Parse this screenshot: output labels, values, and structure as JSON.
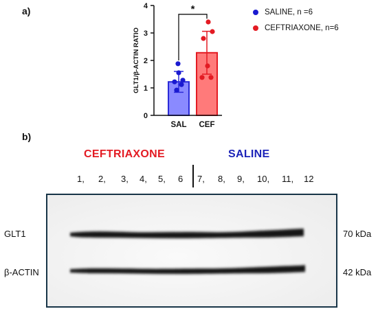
{
  "panel_a": {
    "letter": "a)",
    "chart_data": {
      "type": "bar",
      "categories": [
        "SAL",
        "CEF"
      ],
      "values": [
        1.22,
        2.28
      ],
      "error": [
        0.38,
        0.78
      ],
      "points": [
        [
          0.92,
          1.12,
          1.22,
          1.28,
          1.55,
          1.88
        ],
        [
          1.38,
          1.38,
          1.8,
          2.8,
          3.05,
          3.4
        ]
      ],
      "ylabel": "GLT1/β-ACTIN RATIO",
      "xlabel": "",
      "ylim": [
        0,
        4
      ],
      "yticks": [
        "0",
        "1",
        "2",
        "3",
        "4"
      ],
      "significance": "*",
      "colors": {
        "sal_fill": "#8a8aff",
        "sal_edge": "#2a2ad8",
        "cef_fill": "#ff7a7a",
        "cef_edge": "#e31b23"
      }
    },
    "legend": [
      {
        "label": "SALINE, n =6",
        "color": "#1a1ad0"
      },
      {
        "label": "CEFTRIAXONE, n=6",
        "color": "#e31b23"
      }
    ]
  },
  "panel_b": {
    "letter": "b)",
    "group_left": "CEFTRIAXONE",
    "group_right": "SALINE",
    "lanes": [
      "1,",
      "2,",
      "3,",
      "4,",
      "5,",
      "6",
      "7,",
      "8,",
      "9,",
      "10,",
      "11,",
      "12"
    ],
    "bands": [
      {
        "label": "GLT1",
        "kda": "70 kDa"
      },
      {
        "label": "β-ACTIN",
        "kda": "42 kDa"
      }
    ]
  }
}
